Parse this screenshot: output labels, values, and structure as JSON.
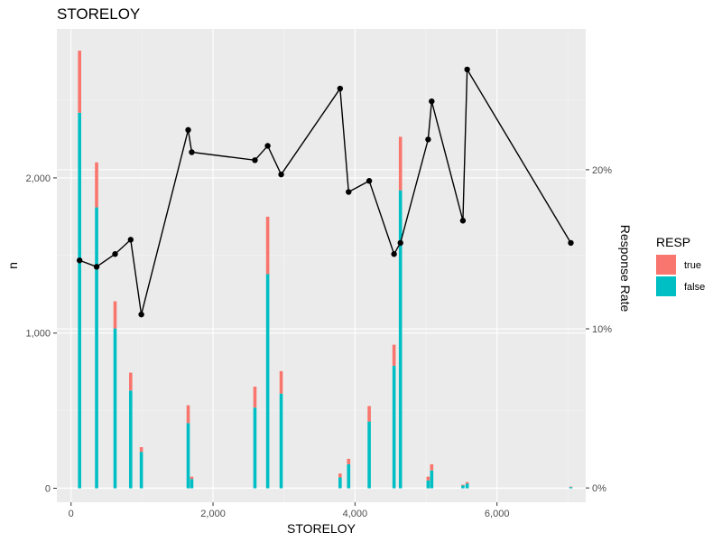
{
  "chart_data": {
    "type": "bar",
    "title": "STORELOY",
    "xlabel": "STORELOY",
    "ylabel": "n",
    "y2label": "Response Rate",
    "xlim": [
      -200,
      7250
    ],
    "ylim": [
      -90,
      2960
    ],
    "y2lim": [
      -0.009,
      0.2885
    ],
    "x_ticks": [
      {
        "value": 0,
        "label": "0"
      },
      {
        "value": 2000,
        "label": "2,000"
      },
      {
        "value": 4000,
        "label": "4,000"
      },
      {
        "value": 6000,
        "label": "6,000"
      }
    ],
    "y_ticks": [
      {
        "value": 0,
        "label": "0"
      },
      {
        "value": 1000,
        "label": "1,000"
      },
      {
        "value": 2000,
        "label": "2,000"
      }
    ],
    "y2_ticks": [
      {
        "value": 0,
        "label": "0%"
      },
      {
        "value": 0.1,
        "label": "10%"
      },
      {
        "value": 0.2,
        "label": "20%"
      }
    ],
    "grid": true,
    "legend": {
      "title": "RESP",
      "position": "right",
      "entries": [
        {
          "label": "true",
          "color": "#F8766D"
        },
        {
          "label": "false",
          "color": "#00BFC4"
        }
      ]
    },
    "stack_order": [
      "false",
      "true"
    ],
    "series": [
      {
        "name": "false",
        "color": "#00BFC4",
        "x": [
          120,
          360,
          620,
          840,
          990,
          1650,
          1700,
          2590,
          2770,
          2960,
          3790,
          3910,
          4200,
          4550,
          4640,
          5030,
          5080,
          5520,
          5580,
          7040
        ],
        "values": [
          2420,
          1810,
          1030,
          630,
          235,
          420,
          60,
          520,
          1380,
          610,
          70,
          155,
          430,
          790,
          1920,
          50,
          115,
          18,
          30,
          8
        ]
      },
      {
        "name": "true",
        "color": "#F8766D",
        "x": [
          120,
          360,
          620,
          840,
          990,
          1650,
          1700,
          2590,
          2770,
          2960,
          3790,
          3910,
          4200,
          4550,
          4640,
          5030,
          5080,
          5520,
          5580,
          7040
        ],
        "values": [
          400,
          290,
          175,
          115,
          30,
          115,
          15,
          135,
          370,
          145,
          25,
          35,
          100,
          135,
          345,
          25,
          40,
          5,
          10,
          3
        ]
      }
    ],
    "line": {
      "name": "Response Rate",
      "axis": "secondary",
      "color": "#000000",
      "x": [
        120,
        360,
        620,
        840,
        990,
        1650,
        1700,
        2590,
        2770,
        2960,
        3790,
        3910,
        4200,
        4550,
        4640,
        5030,
        5080,
        5520,
        5580,
        7040
      ],
      "values": [
        0.143,
        0.139,
        0.147,
        0.156,
        0.109,
        0.225,
        0.211,
        0.206,
        0.215,
        0.197,
        0.251,
        0.186,
        0.193,
        0.147,
        0.154,
        0.219,
        0.243,
        0.168,
        0.263,
        0.154
      ]
    },
    "colors": {
      "panel_bg": "#EBEBEB",
      "grid_major": "#FFFFFF",
      "grid_minor": "#F5F5F5",
      "line": "#000000",
      "true": "#F8766D",
      "false": "#00BFC4"
    }
  }
}
